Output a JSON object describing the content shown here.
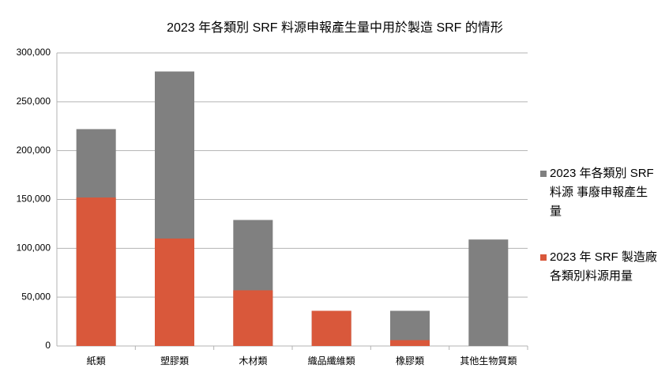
{
  "chart_data": {
    "type": "bar",
    "title": "2023 年各類別 SRF 料源申報產生量中用於製造 SRF 的情形",
    "categories": [
      "紙類",
      "塑膠類",
      "木材類",
      "織品纖維類",
      "橡膠類",
      "其他生物質類"
    ],
    "series": [
      {
        "name": "2023 年各類別 SRF 料源 事廢申報產生量",
        "color": "#808080",
        "values": [
          222000,
          281000,
          129000,
          36000,
          36000,
          109000
        ]
      },
      {
        "name": "2023 年 SRF 製造廠各類別料源用量",
        "color": "#d9583b",
        "values": [
          152000,
          110000,
          57000,
          36000,
          6000,
          0
        ]
      }
    ],
    "ylim": [
      0,
      300000
    ],
    "yticks": [
      0,
      {
        "value": 50000,
        "label": "50,000"
      },
      {
        "value": 100000,
        "label": "100,000"
      },
      {
        "value": 150000,
        "label": "150,000"
      },
      {
        "value": 200000,
        "label": "200,000"
      },
      {
        "value": 250000,
        "label": "250,000"
      },
      {
        "value": 300000,
        "label": "300,000"
      }
    ],
    "grid": true,
    "legend": "right"
  }
}
